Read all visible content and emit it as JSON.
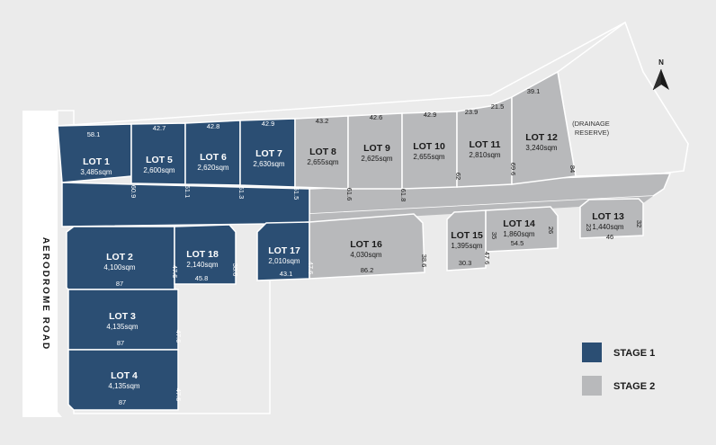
{
  "colors": {
    "stage1": "#2b4e73",
    "stage2": "#b8b9bb",
    "background": "#ebebeb",
    "outline": "#ffffff",
    "road": "#ffffff"
  },
  "road_label": "AERODROME ROAD",
  "drainage_label": "(DRAINAGE RESERVE)",
  "north_label": "N",
  "legend": [
    {
      "label": "STAGE 1",
      "stage": 1
    },
    {
      "label": "STAGE 2",
      "stage": 2
    }
  ],
  "lots": [
    {
      "id": "lot1",
      "name": "LOT 1",
      "area": "3,485sqm",
      "stage": 1,
      "dims": [
        "58.1",
        "60.9"
      ]
    },
    {
      "id": "lot5",
      "name": "LOT 5",
      "area": "2,600sqm",
      "stage": 1,
      "dims": [
        "42.7",
        "61.1"
      ]
    },
    {
      "id": "lot6",
      "name": "LOT 6",
      "area": "2,620sqm",
      "stage": 1,
      "dims": [
        "42.8",
        "61.3"
      ]
    },
    {
      "id": "lot7",
      "name": "LOT 7",
      "area": "2,630sqm",
      "stage": 1,
      "dims": [
        "42.9",
        "61.5"
      ]
    },
    {
      "id": "lot8",
      "name": "LOT 8",
      "area": "2,655sqm",
      "stage": 2,
      "dims": [
        "43.2",
        "61.6"
      ]
    },
    {
      "id": "lot9",
      "name": "LOT 9",
      "area": "2,625sqm",
      "stage": 2,
      "dims": [
        "42.6",
        "61.8"
      ]
    },
    {
      "id": "lot10",
      "name": "LOT 10",
      "area": "2,655sqm",
      "stage": 2,
      "dims": [
        "42.9",
        "62"
      ]
    },
    {
      "id": "lot11",
      "name": "LOT 11",
      "area": "2,810sqm",
      "stage": 2,
      "dims": [
        "23.9",
        "21.5",
        "69.6"
      ]
    },
    {
      "id": "lot12",
      "name": "LOT 12",
      "area": "3,240sqm",
      "stage": 2,
      "dims": [
        "39.1",
        "84"
      ]
    },
    {
      "id": "lot2",
      "name": "LOT 2",
      "area": "4,100sqm",
      "stage": 1,
      "dims": [
        "87",
        "47.6"
      ]
    },
    {
      "id": "lot18",
      "name": "LOT 18",
      "area": "2,140sqm",
      "stage": 1,
      "dims": [
        "45.8",
        "38.6"
      ]
    },
    {
      "id": "lot17",
      "name": "LOT 17",
      "area": "2,010sqm",
      "stage": 1,
      "dims": [
        "43.1",
        "47.6"
      ]
    },
    {
      "id": "lot16",
      "name": "LOT 16",
      "area": "4,030sqm",
      "stage": 2,
      "dims": [
        "86.2",
        "38.6"
      ]
    },
    {
      "id": "lot15",
      "name": "LOT 15",
      "area": "1,395sqm",
      "stage": 2,
      "dims": [
        "30.3",
        "35",
        "47.6"
      ]
    },
    {
      "id": "lot14",
      "name": "LOT 14",
      "area": "1,860sqm",
      "stage": 2,
      "dims": [
        "54.5",
        "26"
      ]
    },
    {
      "id": "lot13",
      "name": "LOT 13",
      "area": "1,440sqm",
      "stage": 2,
      "dims": [
        "23",
        "32",
        "46"
      ]
    },
    {
      "id": "lot3",
      "name": "LOT 3",
      "area": "4,135sqm",
      "stage": 1,
      "dims": [
        "87",
        "47.6"
      ]
    },
    {
      "id": "lot4",
      "name": "LOT 4",
      "area": "4,135sqm",
      "stage": 1,
      "dims": [
        "87",
        "47.6"
      ]
    }
  ]
}
